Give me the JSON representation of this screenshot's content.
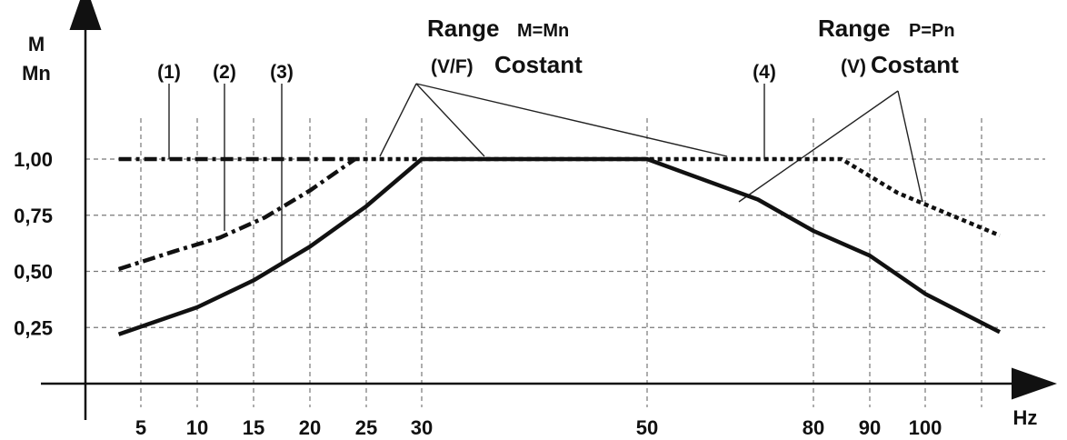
{
  "chart_data": {
    "type": "line",
    "title": "",
    "ylabel_line1": "M",
    "ylabel_line2": "Mn",
    "xlabel": "Hz",
    "y_ticks": [
      {
        "value": 1.0,
        "label": "1,00"
      },
      {
        "value": 0.75,
        "label": "0,75"
      },
      {
        "value": 0.5,
        "label": "0,50"
      },
      {
        "value": 0.25,
        "label": "0,25"
      }
    ],
    "x_ticks": [
      "5",
      "10",
      "15",
      "20",
      "25",
      "30",
      "50",
      "80",
      "90",
      "100"
    ],
    "grid": true,
    "series": [
      {
        "style": "dash-dot",
        "points": [
          [
            3,
            1.0
          ],
          [
            24,
            1.0
          ]
        ]
      },
      {
        "style": "dash-dot",
        "points": [
          [
            3,
            0.51
          ],
          [
            8,
            0.59
          ],
          [
            12,
            0.65
          ],
          [
            16,
            0.74
          ],
          [
            20,
            0.86
          ],
          [
            24,
            1.0
          ]
        ]
      },
      {
        "style": "solid",
        "points": [
          [
            3,
            0.22
          ],
          [
            10,
            0.34
          ],
          [
            15,
            0.46
          ],
          [
            20,
            0.61
          ],
          [
            25,
            0.79
          ],
          [
            30,
            1.0
          ],
          [
            50,
            1.0
          ],
          [
            70,
            0.82
          ],
          [
            80,
            0.68
          ],
          [
            90,
            0.57
          ],
          [
            100,
            0.4
          ],
          [
            112,
            0.23
          ]
        ]
      },
      {
        "style": "dotted",
        "points": [
          [
            24,
            1.0
          ],
          [
            50,
            1.0
          ],
          [
            85,
            1.0
          ],
          [
            95,
            0.85
          ],
          [
            112,
            0.66
          ]
        ]
      }
    ],
    "curve_labels": [
      "(1)",
      "(2)",
      "(3)",
      "(4)"
    ],
    "annotations": [
      {
        "range_word": "Range",
        "formula": "M=Mn",
        "mode": "(V/F)",
        "mode_word": "Costant"
      },
      {
        "range_word": "Range",
        "formula": "P=Pn",
        "mode": "(V)",
        "mode_word": "Costant"
      }
    ]
  }
}
